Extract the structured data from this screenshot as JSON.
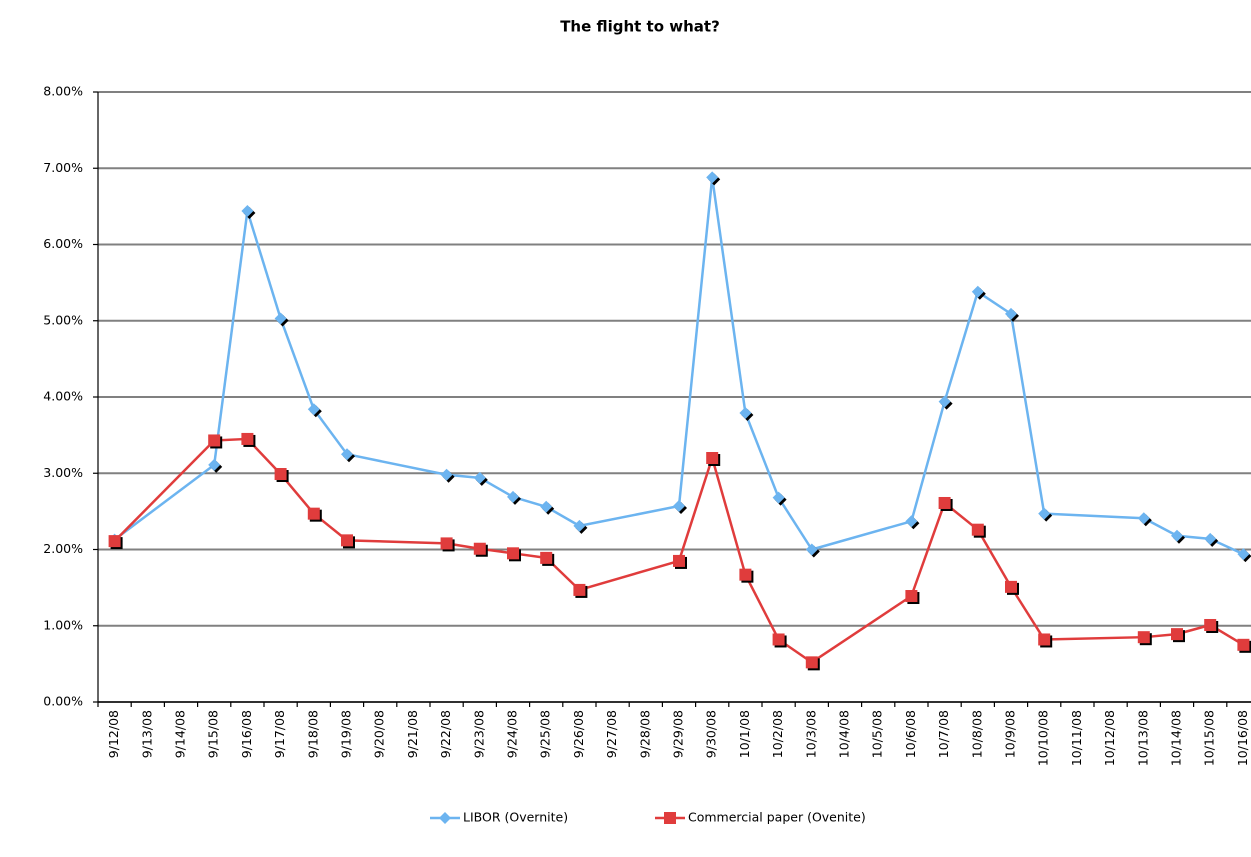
{
  "chart_data": {
    "type": "line",
    "title": "The flight to what?",
    "categories": [
      "9/12/08",
      "9/13/08",
      "9/14/08",
      "9/15/08",
      "9/16/08",
      "9/17/08",
      "9/18/08",
      "9/19/08",
      "9/20/08",
      "9/21/08",
      "9/22/08",
      "9/23/08",
      "9/24/08",
      "9/25/08",
      "9/26/08",
      "9/27/08",
      "9/28/08",
      "9/29/08",
      "9/30/08",
      "10/1/08",
      "10/2/08",
      "10/3/08",
      "10/4/08",
      "10/5/08",
      "10/6/08",
      "10/7/08",
      "10/8/08",
      "10/9/08",
      "10/10/08",
      "10/11/08",
      "10/12/08",
      "10/13/08",
      "10/14/08",
      "10/15/08",
      "10/16/08"
    ],
    "series": [
      {
        "name": "LIBOR (Overnite)",
        "color": "#6cb4f0",
        "marker": "diamond",
        "values": [
          2.13,
          null,
          null,
          3.11,
          6.44,
          5.03,
          3.84,
          3.25,
          null,
          null,
          2.98,
          2.94,
          2.69,
          2.56,
          2.31,
          null,
          null,
          2.57,
          6.88,
          3.79,
          2.68,
          2.0,
          null,
          null,
          2.37,
          3.94,
          5.38,
          5.09,
          2.47,
          null,
          null,
          2.41,
          2.18,
          2.14,
          1.94
        ]
      },
      {
        "name": "Commercial paper (Ovenite)",
        "color": "#e03c3c",
        "marker": "square",
        "values": [
          2.11,
          null,
          null,
          3.43,
          3.45,
          2.99,
          2.47,
          2.12,
          null,
          null,
          2.08,
          2.01,
          1.95,
          1.89,
          1.47,
          null,
          null,
          1.85,
          3.2,
          1.67,
          0.82,
          0.52,
          null,
          null,
          1.39,
          2.61,
          2.26,
          1.51,
          0.82,
          null,
          null,
          0.85,
          0.89,
          1.01,
          0.75
        ]
      }
    ],
    "ylim": [
      0,
      8
    ],
    "yticks": [
      {
        "value": 0,
        "label": "0.00%"
      },
      {
        "value": 1,
        "label": "1.00%"
      },
      {
        "value": 2,
        "label": "2.00%"
      },
      {
        "value": 3,
        "label": "3.00%"
      },
      {
        "value": 4,
        "label": "4.00%"
      },
      {
        "value": 5,
        "label": "5.00%"
      },
      {
        "value": 6,
        "label": "6.00%"
      },
      {
        "value": 7,
        "label": "7.00%"
      },
      {
        "value": 8,
        "label": "8.00%"
      }
    ],
    "grid": true,
    "legend": "bottom"
  }
}
